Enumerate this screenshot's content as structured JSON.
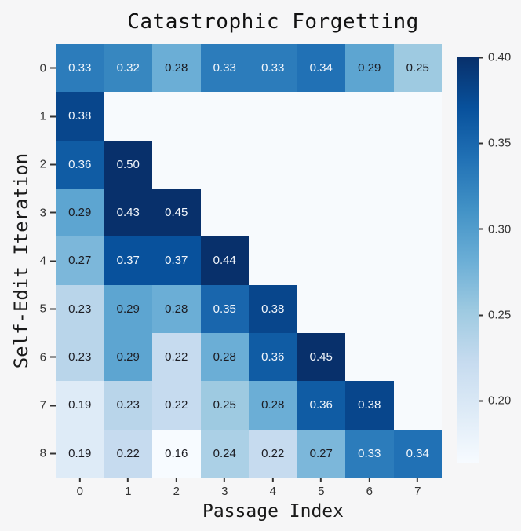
{
  "colors": {
    "background": "#f6f6f7",
    "title_text": "#111111",
    "tick_text": "#333333",
    "axis_label_text": "#1a1a1a"
  },
  "chart_data": {
    "type": "heatmap",
    "title": "Catastrophic Forgetting",
    "xlabel": "Passage Index",
    "ylabel": "Self-Edit Iteration",
    "x_tick_labels": [
      "0",
      "1",
      "2",
      "3",
      "4",
      "5",
      "6",
      "7"
    ],
    "y_tick_labels": [
      "0",
      "1",
      "2",
      "3",
      "4",
      "5",
      "6",
      "7",
      "8"
    ],
    "values": [
      [
        0.33,
        0.32,
        0.28,
        0.33,
        0.33,
        0.34,
        0.29,
        0.25
      ],
      [
        0.38,
        null,
        null,
        null,
        null,
        null,
        null,
        null
      ],
      [
        0.36,
        0.5,
        null,
        null,
        null,
        null,
        null,
        null
      ],
      [
        0.29,
        0.43,
        0.45,
        null,
        null,
        null,
        null,
        null
      ],
      [
        0.27,
        0.37,
        0.37,
        0.44,
        null,
        null,
        null,
        null
      ],
      [
        0.23,
        0.29,
        0.28,
        0.35,
        0.38,
        null,
        null,
        null
      ],
      [
        0.23,
        0.29,
        0.22,
        0.28,
        0.36,
        0.45,
        null,
        null
      ],
      [
        0.19,
        0.23,
        0.22,
        0.25,
        0.28,
        0.36,
        0.38,
        null
      ],
      [
        0.19,
        0.22,
        0.16,
        0.24,
        0.22,
        0.27,
        0.33,
        0.34
      ]
    ],
    "value_decimals": 2,
    "grid": false,
    "colormap": {
      "name": "Blues",
      "vmin": 0.16,
      "vmax": 0.4,
      "stops": [
        {
          "t": 0.0,
          "color": "#f7fbff"
        },
        {
          "t": 0.125,
          "color": "#deebf7"
        },
        {
          "t": 0.25,
          "color": "#c6dbef"
        },
        {
          "t": 0.375,
          "color": "#9ecae1"
        },
        {
          "t": 0.5,
          "color": "#6baed6"
        },
        {
          "t": 0.625,
          "color": "#4292c6"
        },
        {
          "t": 0.75,
          "color": "#2171b5"
        },
        {
          "t": 0.875,
          "color": "#08519c"
        },
        {
          "t": 1.0,
          "color": "#08306b"
        }
      ]
    },
    "empty_color": "#f7fafd",
    "annotation_light_color": "#f2f6fb",
    "annotation_dark_color": "#1c1c22",
    "annotation_white_threshold": 0.32,
    "colorbar": {
      "position": "right",
      "range_min": 0.1636,
      "range_max": 0.4,
      "ticks": [
        {
          "label": "0.40",
          "value": 0.4
        },
        {
          "label": "0.35",
          "value": 0.35
        },
        {
          "label": "0.30",
          "value": 0.3
        },
        {
          "label": "0.25",
          "value": 0.25
        },
        {
          "label": "0.20",
          "value": 0.2
        }
      ]
    }
  }
}
